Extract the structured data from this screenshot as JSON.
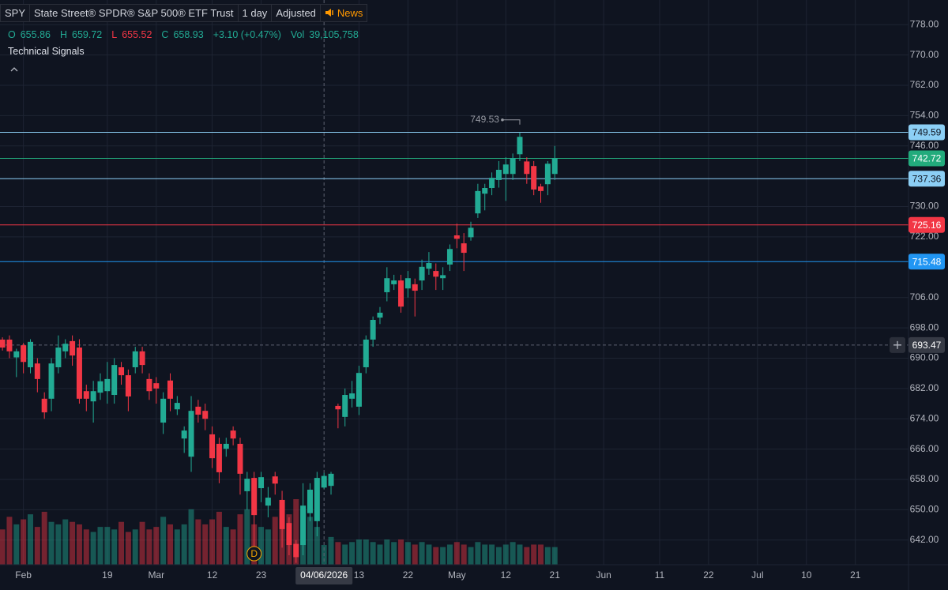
{
  "header": {
    "symbol": "SPY",
    "name": "State Street® SPDR® S&P 500® ETF Trust",
    "interval": "1 day",
    "adjustment": "Adjusted",
    "news": "News",
    "open_label": "O",
    "high_label": "H",
    "low_label": "L",
    "close_label": "C",
    "change": "+3.10 (+0.47%)",
    "volume_label": "Vol",
    "volume": "39,105,758",
    "indicator": "Technical Signals"
  },
  "chart_data": {
    "type": "candlestick",
    "x": [
      0,
      1,
      2,
      3,
      4,
      5,
      6,
      7,
      8,
      9,
      10,
      11,
      12,
      13,
      14,
      15,
      16,
      17,
      18,
      19,
      20,
      21,
      22,
      23,
      24,
      25,
      26,
      27,
      28,
      29,
      30,
      31,
      32,
      33,
      34,
      35,
      36,
      37,
      38,
      39,
      40,
      41,
      42,
      43,
      44,
      45,
      46,
      47,
      48,
      49,
      50,
      51,
      52,
      53,
      54,
      55,
      56,
      57,
      58,
      59,
      60,
      61,
      62,
      63,
      64,
      65,
      66,
      67,
      68,
      69,
      70,
      71,
      72,
      73,
      74,
      75,
      76,
      77,
      78,
      79
    ],
    "open": [
      694.9,
      694.9,
      690.2,
      693.4,
      687.6,
      688.6,
      679.3,
      679.3,
      687.6,
      691.8,
      694.5,
      692.8,
      681.3,
      678.6,
      680.9,
      681.3,
      680.3,
      687.6,
      685.5,
      687.6,
      691.8,
      684.5,
      683.4,
      673,
      684.1,
      676.5,
      668.8,
      664,
      677.2,
      676.1,
      669.9,
      667.4,
      666.1,
      670.9,
      667.4,
      654.9,
      658.4,
      655.7,
      651.1,
      658.8,
      652.6,
      646.5,
      641,
      640.7,
      649.1,
      647,
      655.86,
      656.3,
      677.4,
      674.5,
      679.3,
      677.2,
      687.6,
      694.9,
      700.7,
      707.4,
      709.5,
      710.5,
      708.4,
      709.5,
      710.5,
      713.6,
      713,
      711.1,
      714.7,
      722.4,
      720.3,
      721.9,
      728.2,
      733.4,
      734.9,
      737,
      738.6,
      738.6,
      743.8,
      741.9,
      740.7,
      735.3,
      735.9,
      738.6
    ],
    "high": [
      695.5,
      696,
      692.5,
      694,
      695,
      690,
      681,
      690,
      696,
      695,
      696,
      695,
      683,
      684,
      686,
      689,
      690,
      689,
      687,
      693,
      693,
      686,
      685,
      681,
      686,
      680,
      672,
      680,
      679,
      678,
      672,
      669,
      669,
      672,
      669,
      660,
      660,
      660,
      656,
      660,
      655,
      648,
      642,
      657,
      657,
      660,
      659.72,
      660,
      678,
      682,
      684,
      688,
      696,
      701,
      703.5,
      714,
      712,
      712,
      713,
      711,
      716,
      718,
      715,
      714,
      720,
      725.5,
      723,
      726,
      736,
      736,
      739,
      742,
      743,
      744,
      749.53,
      743,
      742,
      736,
      742,
      746
    ],
    "low": [
      692,
      690,
      685,
      686,
      686,
      681,
      674,
      676,
      686,
      690,
      688,
      678,
      676,
      673,
      679,
      678,
      678,
      683,
      676,
      686,
      686,
      679,
      678,
      670,
      676,
      675,
      665,
      660,
      673,
      671,
      661,
      657,
      664,
      667,
      654,
      650,
      640,
      652,
      648,
      654,
      640,
      638,
      636,
      638,
      647,
      643,
      655.52,
      654,
      671.5,
      672,
      677,
      675,
      686,
      693,
      699,
      705,
      708,
      702,
      706,
      701,
      708,
      712,
      708,
      708,
      713,
      719,
      713,
      721,
      727,
      729,
      733,
      735,
      731.5,
      737,
      742,
      736,
      733,
      731,
      733,
      737
    ],
    "close": [
      692.8,
      691.8,
      691.8,
      689,
      694.3,
      684.5,
      675.7,
      688.6,
      692.8,
      693.8,
      690.7,
      679.3,
      679.3,
      681.3,
      683.9,
      684.5,
      688.2,
      685.5,
      679.9,
      691.8,
      688.2,
      681.3,
      682,
      679.3,
      679.3,
      678.2,
      670.9,
      676.1,
      675.1,
      674,
      663.6,
      659.9,
      667.4,
      668.8,
      659.5,
      658.2,
      648.6,
      658.6,
      653.2,
      656.9,
      644.9,
      640.7,
      637.5,
      651.1,
      655.3,
      658.4,
      658.93,
      659.5,
      676.5,
      680.3,
      680.7,
      686.1,
      694.9,
      700.1,
      702,
      711.1,
      710.5,
      703.6,
      711.1,
      707.8,
      714.1,
      715.1,
      711.5,
      711.9,
      718.8,
      721.5,
      717.8,
      724.4,
      734.1,
      734.9,
      737.6,
      739.7,
      741.1,
      742.8,
      748.4,
      738.6,
      734.5,
      734.1,
      741.3,
      742.72
    ],
    "volume": [
      70000000,
      95000000,
      80000000,
      90000000,
      100000000,
      75000000,
      105000000,
      85000000,
      80000000,
      90000000,
      85000000,
      80000000,
      70000000,
      65000000,
      75000000,
      75000000,
      70000000,
      85000000,
      65000000,
      70000000,
      85000000,
      70000000,
      75000000,
      95000000,
      80000000,
      70000000,
      80000000,
      110000000,
      90000000,
      80000000,
      90000000,
      105000000,
      75000000,
      70000000,
      100000000,
      110000000,
      80000000,
      75000000,
      70000000,
      95000000,
      90000000,
      100000000,
      130000000,
      110000000,
      95000000,
      75000000,
      39105758,
      55000000,
      45000000,
      40000000,
      45000000,
      50000000,
      50000000,
      45000000,
      40000000,
      50000000,
      45000000,
      50000000,
      45000000,
      40000000,
      45000000,
      40000000,
      35000000,
      35000000,
      40000000,
      45000000,
      40000000,
      35000000,
      45000000,
      40000000,
      40000000,
      35000000,
      40000000,
      45000000,
      40000000,
      35000000,
      40000000,
      40000000,
      35000000,
      35000000
    ],
    "up_color": "#22ab94",
    "down_color": "#f23645",
    "xlim": [
      -0.35,
      129.6
    ],
    "ylim": [
      635.5,
      784.5
    ],
    "xticks": [
      {
        "value": 3,
        "label": "Feb"
      },
      {
        "value": 15,
        "label": "19"
      },
      {
        "value": 22,
        "label": "Mar"
      },
      {
        "value": 30,
        "label": "12"
      },
      {
        "value": 37,
        "label": "23"
      },
      {
        "value": 51,
        "label": "13"
      },
      {
        "value": 58,
        "label": "22"
      },
      {
        "value": 65,
        "label": "May"
      },
      {
        "value": 72,
        "label": "12"
      },
      {
        "value": 79,
        "label": "21"
      },
      {
        "value": 86,
        "label": "Jun"
      },
      {
        "value": 94,
        "label": "11"
      },
      {
        "value": 101,
        "label": "22"
      },
      {
        "value": 108,
        "label": "Jul"
      },
      {
        "value": 115,
        "label": "10"
      },
      {
        "value": 122,
        "label": "21"
      }
    ],
    "yticks": [
      {
        "value": 778,
        "label": "778.00"
      },
      {
        "value": 770,
        "label": "770.00"
      },
      {
        "value": 762,
        "label": "762.00"
      },
      {
        "value": 754,
        "label": "754.00"
      },
      {
        "value": 746,
        "label": "746.00"
      },
      {
        "value": 730,
        "label": "730.00"
      },
      {
        "value": 722,
        "label": "722.00"
      },
      {
        "value": 706,
        "label": "706.00"
      },
      {
        "value": 698,
        "label": "698.00"
      },
      {
        "value": 690,
        "label": "690.00"
      },
      {
        "value": 682,
        "label": "682.00"
      },
      {
        "value": 674,
        "label": "674.00"
      },
      {
        "value": 666,
        "label": "666.00"
      },
      {
        "value": 658,
        "label": "658.00"
      },
      {
        "value": 650,
        "label": "650.00"
      },
      {
        "value": 642,
        "label": "642.00"
      }
    ],
    "grid": true,
    "levels": [
      {
        "value": 749.59,
        "color": "#8ccff5"
      },
      {
        "value": 742.72,
        "color": "#22ab7c"
      },
      {
        "value": 737.36,
        "color": "#8ccff5"
      },
      {
        "value": 725.16,
        "color": "#f23645"
      },
      {
        "value": 715.48,
        "color": "#2196f3"
      }
    ],
    "crosshair": {
      "x": 46,
      "x_label": "04/06/2026",
      "y": 693.47
    },
    "high_marker": {
      "x": 74,
      "label": "749.53"
    },
    "events": [
      {
        "x": 36,
        "label": "D"
      }
    ]
  }
}
